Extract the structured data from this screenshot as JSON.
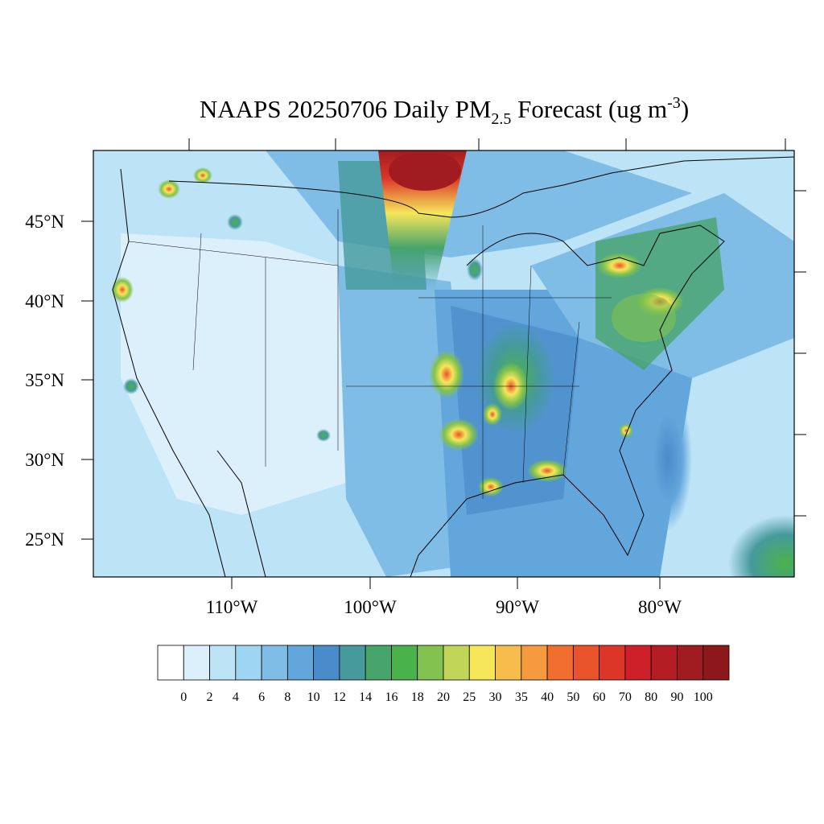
{
  "title": {
    "prefix": "NAAPS 20250706 Daily PM",
    "subscript": "2.5",
    "middle": " Forecast (ug m",
    "superscript": "-3",
    "suffix": ")"
  },
  "lat_labels": [
    "45°N",
    "40°N",
    "35°N",
    "30°N",
    "25°N"
  ],
  "lon_labels": [
    "110°W",
    "100°W",
    "90°W",
    "80°W"
  ],
  "colorbar": {
    "colors": [
      "#ffffff",
      "#dcf0fb",
      "#bde3f7",
      "#9dd5f3",
      "#7fbde6",
      "#62a6db",
      "#4a8bc9",
      "#469a9c",
      "#47a46b",
      "#4ab24a",
      "#82c24e",
      "#c1d659",
      "#f6e65a",
      "#f7bd4c",
      "#f59a3e",
      "#f26e2e",
      "#e9532b",
      "#dc3628",
      "#cd2028",
      "#b51d24",
      "#a01c20",
      "#8c181c"
    ],
    "levels": [
      0,
      2,
      4,
      6,
      8,
      10,
      12,
      14,
      16,
      18,
      20,
      25,
      30,
      35,
      40,
      50,
      60,
      70,
      80,
      90,
      100
    ]
  }
}
